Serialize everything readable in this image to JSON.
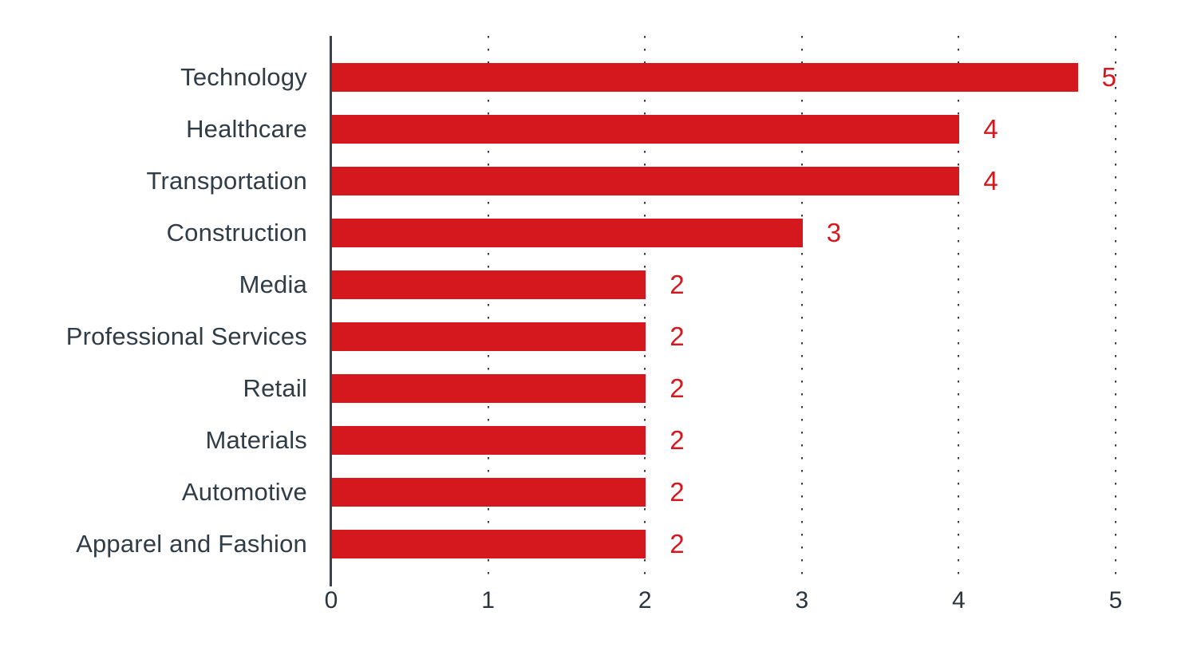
{
  "chart_data": {
    "type": "bar",
    "orientation": "horizontal",
    "title": "",
    "categories": [
      "Technology",
      "Healthcare",
      "Transportation",
      "Construction",
      "Media",
      "Professional Services",
      "Retail",
      "Materials",
      "Automotive",
      "Apparel and Fashion"
    ],
    "values": [
      5,
      4,
      4,
      3,
      2,
      2,
      2,
      2,
      2,
      2
    ],
    "value_labels": [
      "5",
      "4",
      "4",
      "3",
      "2",
      "2",
      "2",
      "2",
      "2",
      "2"
    ],
    "xlabel": "",
    "ylabel": "",
    "xlim": [
      0,
      5
    ],
    "x_ticks": [
      "0",
      "1",
      "2",
      "3",
      "4",
      "5"
    ],
    "grid": "dotted-vertical",
    "legend": "none",
    "colors": {
      "bar": "#d5171e",
      "value_label": "#d5171e",
      "category_label": "#303c46",
      "axis_line": "#39434b",
      "gridline": "#3c3c3c",
      "background": "#ffffff"
    }
  }
}
